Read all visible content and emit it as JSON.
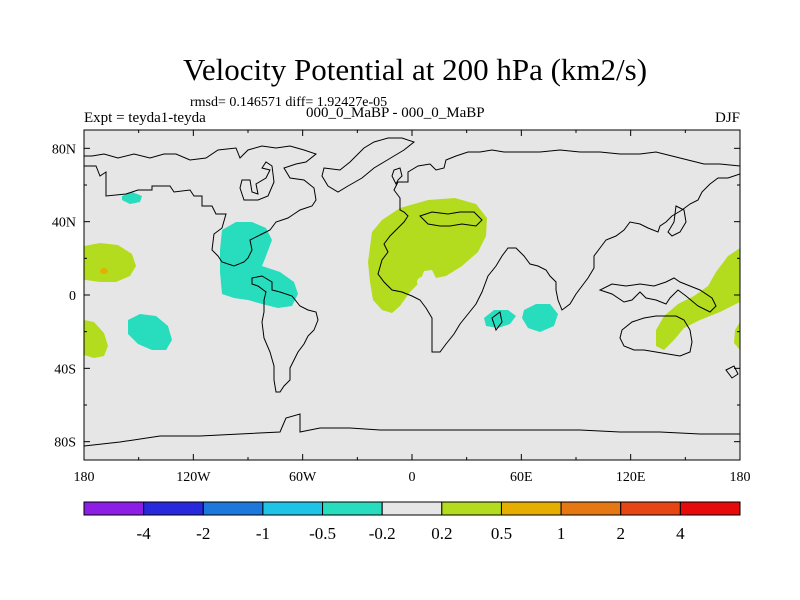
{
  "title": "Velocity Potential at 200 hPa (km2/s)",
  "stats": "rmsd= 0.146571  diff= 1.92427e-05",
  "left_label": "Expt = teyda1-teyda",
  "center_label": "000_0_MaBP - 000_0_MaBP",
  "right_label": "DJF",
  "chart_data": {
    "type": "heatmap",
    "x_ticks": [
      "180",
      "120W",
      "60W",
      "0",
      "60E",
      "120E",
      "180"
    ],
    "y_ticks": [
      "80N",
      "40N",
      "0",
      "40S",
      "80S"
    ],
    "xlim": [
      -180,
      180
    ],
    "ylim": [
      -90,
      90
    ],
    "colorbar": {
      "labels": [
        "-4",
        "-2",
        "-1",
        "-0.5",
        "-0.2",
        "0.2",
        "0.5",
        "1",
        "2",
        "4"
      ],
      "colors": [
        "#8c1ee6",
        "#2828dc",
        "#1c78dc",
        "#1ec3e6",
        "#28dcbe",
        "#e6e6e6",
        "#b4dc1e",
        "#e6af00",
        "#e67814",
        "#e64614",
        "#e60a0a"
      ]
    },
    "background_color": "#e6e6e6"
  }
}
